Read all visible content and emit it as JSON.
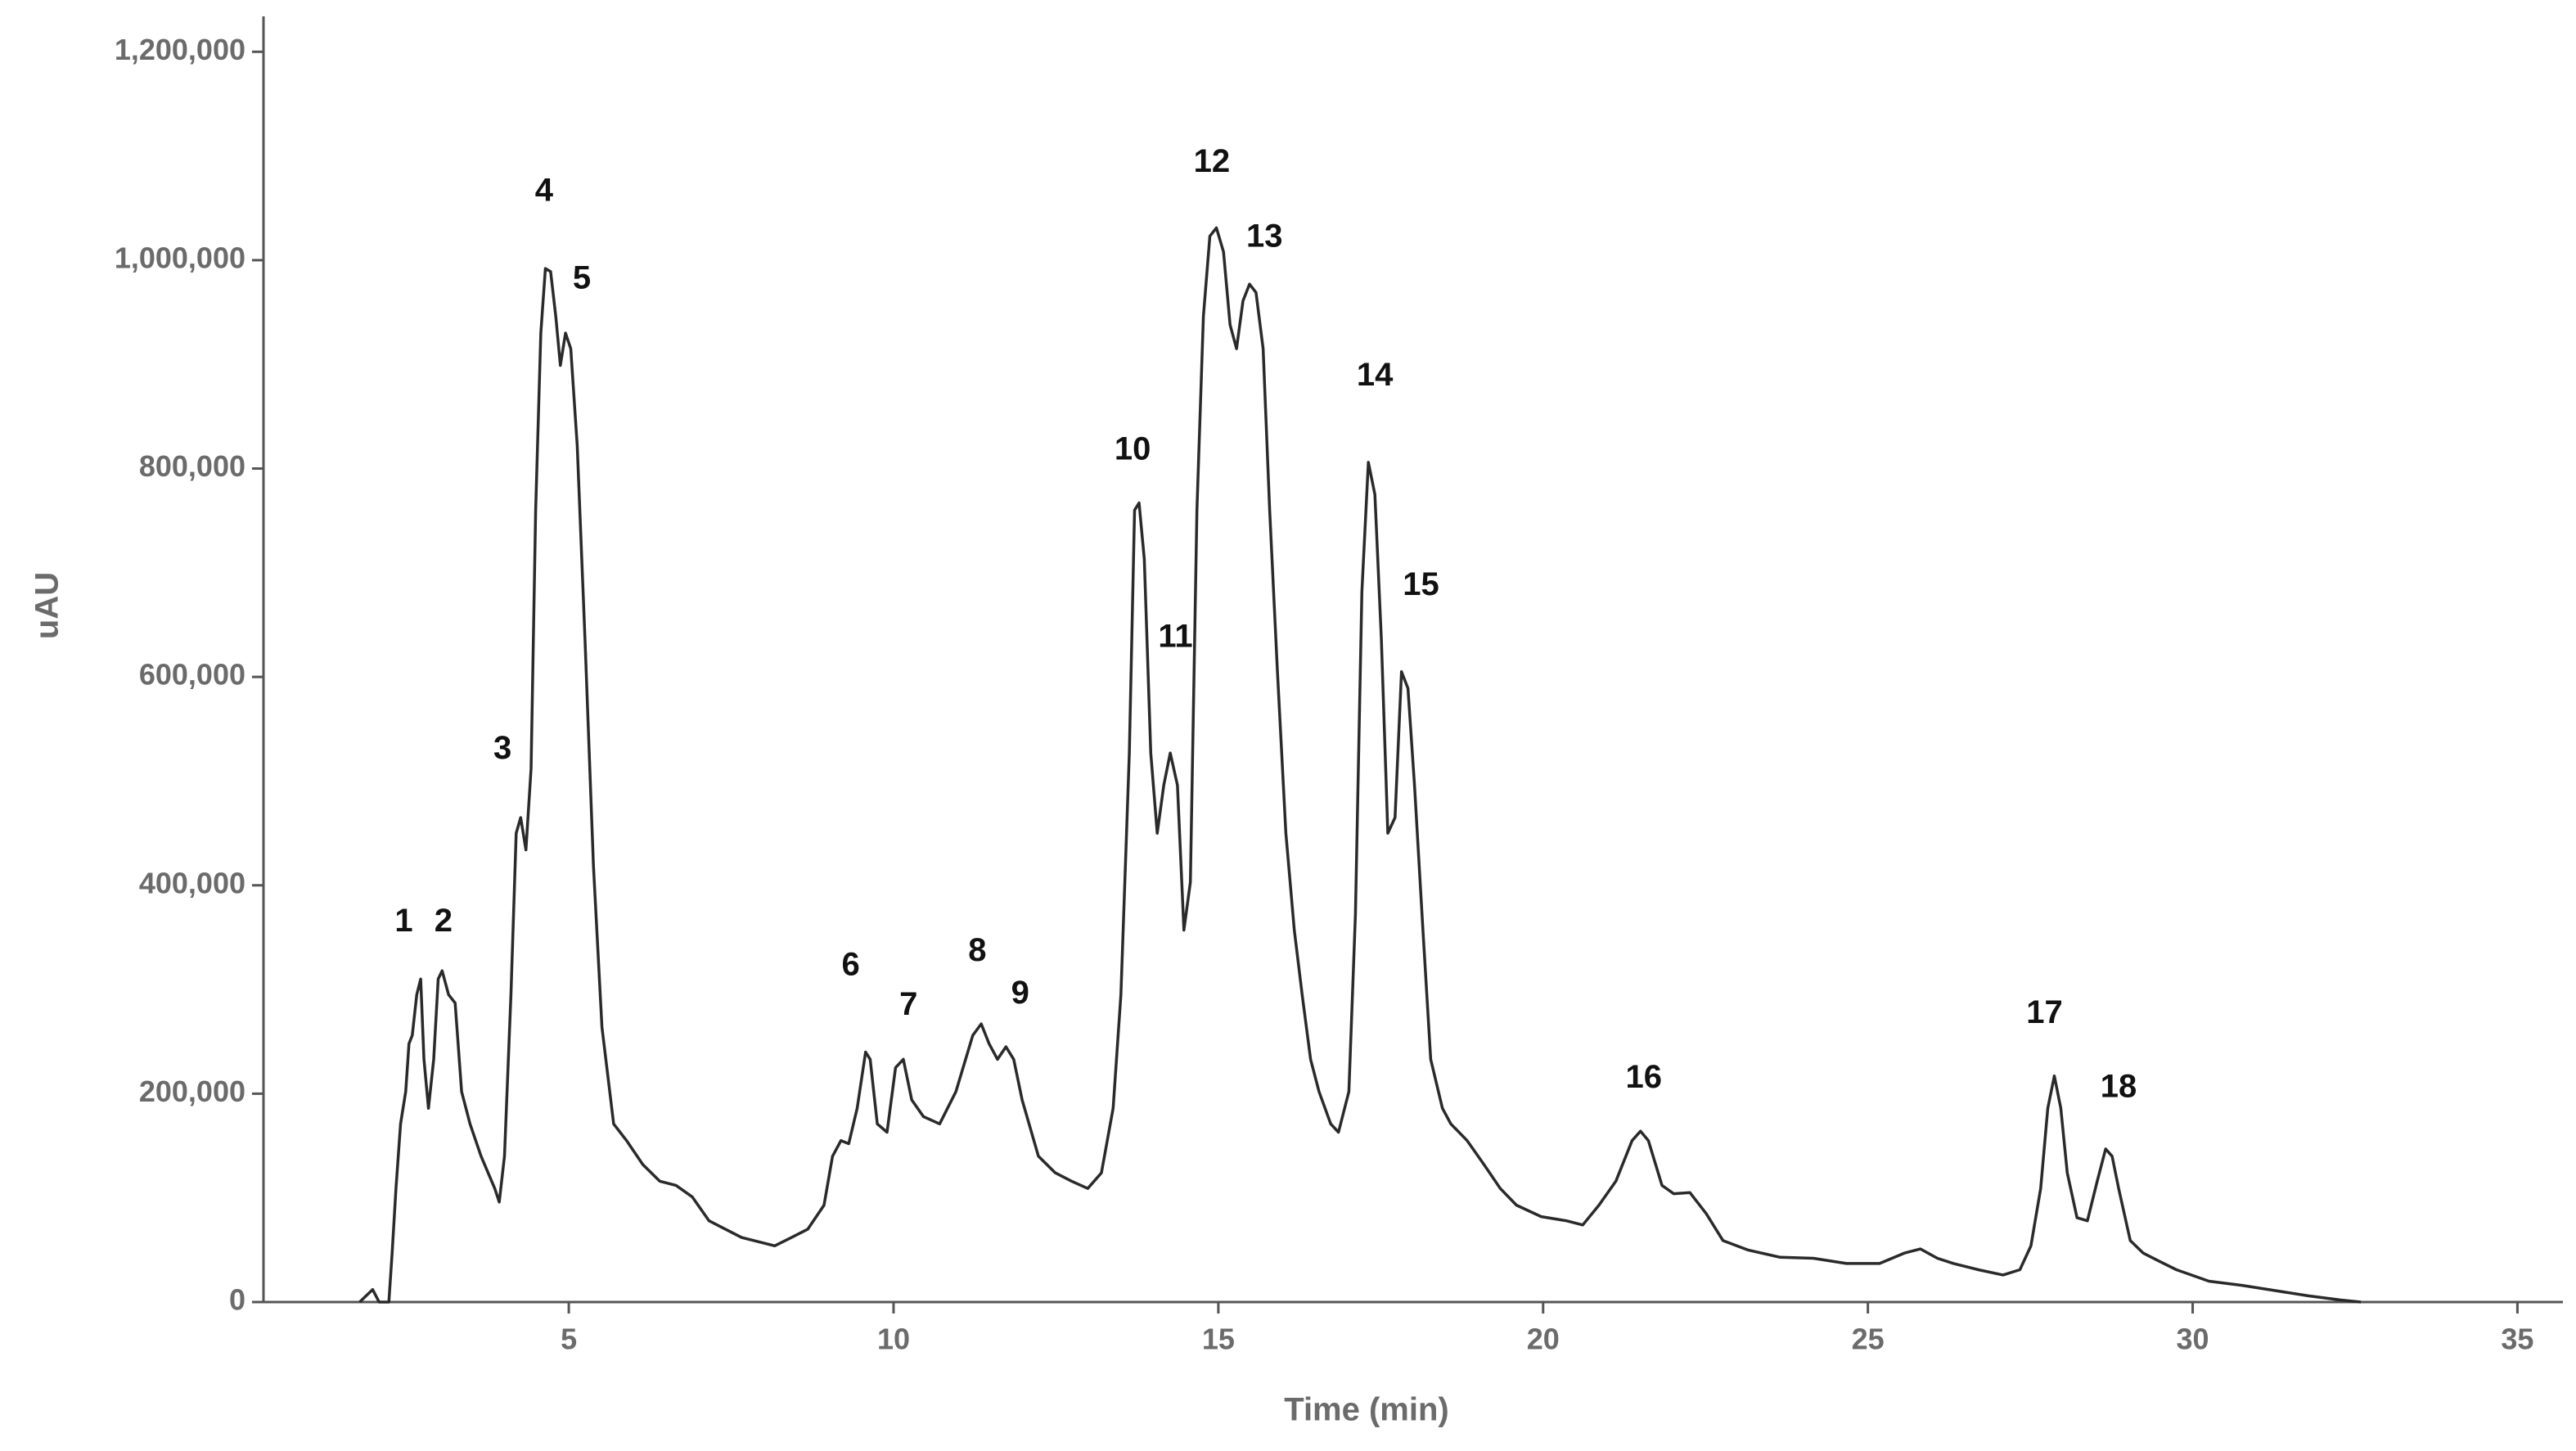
{
  "chart_data": {
    "type": "line",
    "x_label": "Time (min)",
    "y_label": "uAU",
    "color": "#2a2a2a",
    "xlim": [
      0.3,
      35.7
    ],
    "ylim": [
      0,
      1234000
    ],
    "xticks": [
      5,
      10,
      15,
      20,
      25,
      30,
      35
    ],
    "yticks": [
      0,
      {
        "value": 200000,
        "label": "200,000"
      },
      {
        "value": 400000,
        "label": "400,000"
      },
      {
        "value": 600000,
        "label": "600,000"
      },
      {
        "value": 800000,
        "label": "800,000"
      },
      {
        "value": 1000000,
        "label": "1,000,000"
      },
      {
        "value": 1200000,
        "label": "1,200,000"
      }
    ],
    "x": [
      1.78,
      1.88,
      1.98,
      2.08,
      2.23,
      2.28,
      2.34,
      2.41,
      2.49,
      2.54,
      2.59,
      2.66,
      2.72,
      2.77,
      2.84,
      2.92,
      2.99,
      3.05,
      3.15,
      3.25,
      3.35,
      3.48,
      3.65,
      3.86,
      3.93,
      4.01,
      4.11,
      4.19,
      4.26,
      4.34,
      4.42,
      4.49,
      4.57,
      4.64,
      4.72,
      4.8,
      4.87,
      4.95,
      5.03,
      5.13,
      5.25,
      5.38,
      5.51,
      5.69,
      5.89,
      6.14,
      6.4,
      6.65,
      6.9,
      7.16,
      7.41,
      7.66,
      8.17,
      8.43,
      8.68,
      8.93,
      9.06,
      9.19,
      9.31,
      9.44,
      9.57,
      9.64,
      9.75,
      9.9,
      10.03,
      10.15,
      10.28,
      10.46,
      10.71,
      10.96,
      11.22,
      11.35,
      11.47,
      11.6,
      11.73,
      11.85,
      11.98,
      12.23,
      12.49,
      12.74,
      12.99,
      13.2,
      13.38,
      13.5,
      13.63,
      13.71,
      13.78,
      13.86,
      13.96,
      14.06,
      14.16,
      14.26,
      14.37,
      14.47,
      14.57,
      14.67,
      14.77,
      14.87,
      14.97,
      15.08,
      15.18,
      15.28,
      15.38,
      15.48,
      15.58,
      15.69,
      15.79,
      15.91,
      16.04,
      16.17,
      16.29,
      16.42,
      16.55,
      16.73,
      16.85,
      17.01,
      17.11,
      17.21,
      17.31,
      17.41,
      17.51,
      17.61,
      17.72,
      17.82,
      17.92,
      18.02,
      18.15,
      18.27,
      18.45,
      18.58,
      18.83,
      19.09,
      19.34,
      19.59,
      19.97,
      20.36,
      20.61,
      20.86,
      21.12,
      21.37,
      21.5,
      21.62,
      21.83,
      22.01,
      22.26,
      22.51,
      22.77,
      23.15,
      23.65,
      24.16,
      24.67,
      25.18,
      25.56,
      25.81,
      26.07,
      26.32,
      26.7,
      27.08,
      27.34,
      27.51,
      27.66,
      27.77,
      27.87,
      27.97,
      28.07,
      28.22,
      28.38,
      28.53,
      28.66,
      28.76,
      28.86,
      29.04,
      29.24,
      29.49,
      29.75,
      30.25,
      30.76,
      31.27,
      31.78,
      32.28,
      32.59
    ],
    "values": [
      0,
      6000,
      12000,
      0,
      0,
      47000,
      109000,
      171000,
      202000,
      248000,
      256000,
      295000,
      310000,
      233000,
      186000,
      233000,
      310000,
      318000,
      295000,
      287000,
      202000,
      171000,
      140000,
      109000,
      96000,
      140000,
      295000,
      450000,
      465000,
      434000,
      512000,
      760000,
      930000,
      992000,
      989000,
      946000,
      899000,
      930000,
      915000,
      822000,
      636000,
      419000,
      264000,
      171000,
      155000,
      132000,
      116000,
      112000,
      101000,
      78000,
      70000,
      62000,
      54000,
      62000,
      70000,
      93000,
      140000,
      155000,
      152000,
      186000,
      240000,
      233000,
      171000,
      163000,
      225000,
      233000,
      194000,
      178000,
      171000,
      202000,
      256000,
      267000,
      248000,
      233000,
      245000,
      233000,
      194000,
      140000,
      124000,
      116000,
      109000,
      124000,
      186000,
      295000,
      527000,
      760000,
      767000,
      713000,
      527000,
      450000,
      496000,
      527000,
      496000,
      357000,
      403000,
      760000,
      946000,
      1023000,
      1031000,
      1008000,
      938000,
      915000,
      961000,
      977000,
      969000,
      915000,
      760000,
      605000,
      450000,
      357000,
      295000,
      233000,
      202000,
      171000,
      163000,
      202000,
      372000,
      682000,
      806000,
      775000,
      636000,
      450000,
      465000,
      605000,
      589000,
      496000,
      357000,
      233000,
      186000,
      171000,
      155000,
      132000,
      109000,
      93000,
      82000,
      78000,
      74000,
      93000,
      116000,
      155000,
      164000,
      155000,
      112000,
      104000,
      105000,
      85000,
      59000,
      50000,
      43000,
      42000,
      37000,
      37000,
      47000,
      51000,
      42000,
      37000,
      31000,
      26000,
      31000,
      54000,
      109000,
      186000,
      217000,
      186000,
      124000,
      81000,
      78000,
      116000,
      147000,
      140000,
      109000,
      59000,
      47000,
      39000,
      31000,
      20000,
      16000,
      11000,
      6000,
      2000,
      0
    ],
    "annotations": [
      {
        "text": "1",
        "x": 2.46,
        "y": 364000
      },
      {
        "text": "2",
        "x": 3.07,
        "y": 364000
      },
      {
        "text": "3",
        "x": 3.98,
        "y": 530000
      },
      {
        "text": "4",
        "x": 4.62,
        "y": 1065000
      },
      {
        "text": "5",
        "x": 5.2,
        "y": 981000
      },
      {
        "text": "6",
        "x": 9.34,
        "y": 322000
      },
      {
        "text": "7",
        "x": 10.23,
        "y": 284000
      },
      {
        "text": "8",
        "x": 11.29,
        "y": 336000
      },
      {
        "text": "9",
        "x": 11.95,
        "y": 295000
      },
      {
        "text": "10",
        "x": 13.68,
        "y": 817000
      },
      {
        "text": "11",
        "x": 14.34,
        "y": 637000
      },
      {
        "text": "12",
        "x": 14.9,
        "y": 1093000
      },
      {
        "text": "13",
        "x": 15.71,
        "y": 1021000
      },
      {
        "text": "14",
        "x": 17.41,
        "y": 888000
      },
      {
        "text": "15",
        "x": 18.12,
        "y": 687000
      },
      {
        "text": "16",
        "x": 21.55,
        "y": 214000
      },
      {
        "text": "17",
        "x": 27.72,
        "y": 276000
      },
      {
        "text": "18",
        "x": 28.86,
        "y": 205000
      }
    ]
  }
}
